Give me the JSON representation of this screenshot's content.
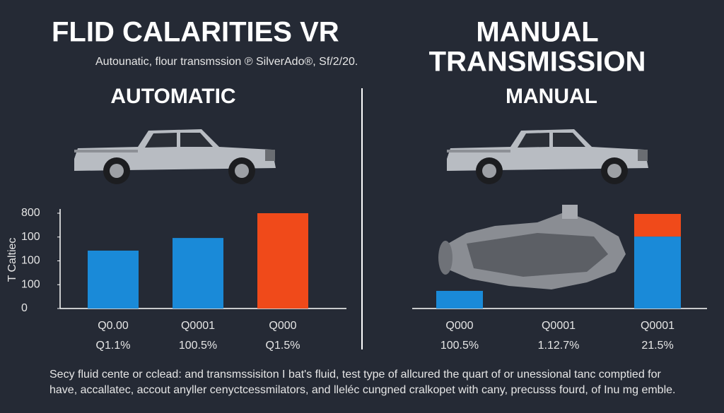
{
  "header": {
    "title": "FLID CALARITIES VR",
    "subtitle": "Autounatic, flour transmssion ℗ SilverAdo®, Sf/2/20.",
    "right_title": [
      "MANUAL",
      "TRANSMISSION"
    ]
  },
  "chart_data": [
    {
      "type": "bar",
      "title": "AUTOMATIC",
      "y_label": "T Caltiec",
      "categories": [
        "Q0.00",
        "Q0001",
        "Q000"
      ],
      "sublabels": [
        "Q1.1%",
        "100.5%",
        "Q1.5%"
      ],
      "values": [
        2.43,
        2.96,
        4
      ],
      "colors": [
        "#1a8ad8",
        "#1a8ad8",
        "#f04a1a"
      ],
      "ylim": [
        0,
        4
      ],
      "yticks": [
        {
          "value": 0,
          "label": "0"
        },
        {
          "value": 1,
          "label": "100"
        },
        {
          "value": 2,
          "label": "100"
        },
        {
          "value": 3,
          "label": "100"
        },
        {
          "value": 4,
          "label": "800"
        }
      ]
    },
    {
      "type": "stacked_bar",
      "title": "MANUAL",
      "categories": [
        "Q000",
        "Q0001",
        "Q0001"
      ],
      "sublabels": [
        "100.5%",
        "1.12.7%",
        "21.5%"
      ],
      "series": [
        {
          "color": "#1a8ad8",
          "values": [
            0.74,
            null,
            3.02
          ]
        },
        {
          "color": "#f04a1a",
          "values": [
            null,
            null,
            0.95
          ]
        }
      ],
      "ylim": [
        0,
        4
      ]
    }
  ],
  "footer": [
    "Secy fluid cente or cclead: and transmssisiton I bat's fluid, test type of allcured the quart of or unessional tanc comptied for",
    "have, accallatec, accout anyller cenyctcessmilators, and lleléc cungned cralkopet with cany, precusss fourd, of Inu mg emble."
  ]
}
